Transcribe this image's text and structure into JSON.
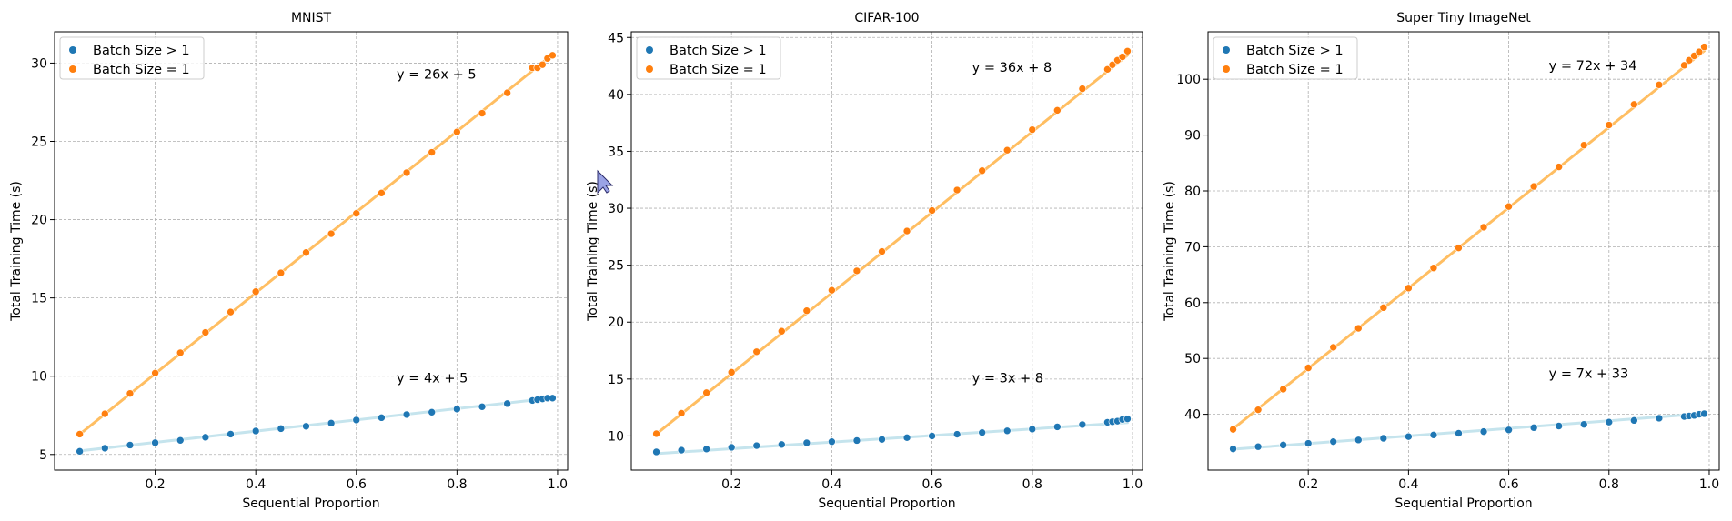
{
  "colors": {
    "batch_gt1_point": "#1f77b4",
    "batch_gt1_line": "#add8e6",
    "batch_eq1_point": "#ff7f0e",
    "batch_eq1_line": "#ffb347",
    "grid": "#b0b0b0",
    "cursor": "#9aa3e6"
  },
  "cursor_icon": "arrow-cursor-icon",
  "chart_data": [
    {
      "type": "scatter",
      "title": "MNIST",
      "xlabel": "Sequential Proportion",
      "ylabel": "Total Training Time (s)",
      "xlim": [
        0.0,
        1.02
      ],
      "ylim": [
        4.0,
        32.0
      ],
      "xticks": [
        0.2,
        0.4,
        0.6,
        0.8,
        1.0
      ],
      "xtick_labels": [
        "0.2",
        "0.4",
        "0.6",
        "0.8",
        "1.0"
      ],
      "yticks": [
        5,
        10,
        15,
        20,
        25,
        30
      ],
      "ytick_labels": [
        "5",
        "10",
        "15",
        "20",
        "25",
        "30"
      ],
      "grid": true,
      "legend": "top-left",
      "x": [
        0.05,
        0.1,
        0.15,
        0.2,
        0.25,
        0.3,
        0.35,
        0.4,
        0.45,
        0.5,
        0.55,
        0.6,
        0.65,
        0.7,
        0.75,
        0.8,
        0.85,
        0.9,
        0.95,
        0.96,
        0.97,
        0.98,
        0.99
      ],
      "series": [
        {
          "name": "Batch Size > 1",
          "values": [
            5.2,
            5.4,
            5.6,
            5.75,
            5.9,
            6.1,
            6.3,
            6.5,
            6.65,
            6.8,
            7.0,
            7.2,
            7.35,
            7.55,
            7.7,
            7.9,
            8.05,
            8.25,
            8.45,
            8.5,
            8.55,
            8.6,
            8.6
          ],
          "fit": {
            "slope": 3.6,
            "intercept": 5.05
          },
          "annotation": "y = 4x + 5",
          "annotation_pos": [
            0.68,
            9.6
          ]
        },
        {
          "name": "Batch Size = 1",
          "values": [
            6.3,
            7.6,
            8.9,
            10.2,
            11.5,
            12.8,
            14.1,
            15.4,
            16.6,
            17.9,
            19.1,
            20.4,
            21.7,
            23.0,
            24.3,
            25.6,
            26.8,
            28.1,
            29.7,
            29.7,
            29.9,
            30.3,
            30.5
          ],
          "fit": {
            "slope": 25.8,
            "intercept": 5.0
          },
          "annotation": "y = 26x + 5",
          "annotation_pos": [
            0.68,
            29.0
          ]
        }
      ]
    },
    {
      "type": "scatter",
      "title": "CIFAR-100",
      "xlabel": "Sequential Proportion",
      "ylabel": "Total Training Time (s)",
      "xlim": [
        0.0,
        1.02
      ],
      "ylim": [
        7.0,
        45.5
      ],
      "xticks": [
        0.2,
        0.4,
        0.6,
        0.8,
        1.0
      ],
      "xtick_labels": [
        "0.2",
        "0.4",
        "0.6",
        "0.8",
        "1.0"
      ],
      "yticks": [
        10,
        15,
        20,
        25,
        30,
        35,
        40,
        45
      ],
      "ytick_labels": [
        "10",
        "15",
        "20",
        "25",
        "30",
        "35",
        "40",
        "45"
      ],
      "grid": true,
      "legend": "top-left",
      "x": [
        0.05,
        0.1,
        0.15,
        0.2,
        0.25,
        0.3,
        0.35,
        0.4,
        0.45,
        0.5,
        0.55,
        0.6,
        0.65,
        0.7,
        0.75,
        0.8,
        0.85,
        0.9,
        0.95,
        0.96,
        0.97,
        0.98,
        0.99
      ],
      "series": [
        {
          "name": "Batch Size > 1",
          "values": [
            8.6,
            8.75,
            8.85,
            9.0,
            9.15,
            9.25,
            9.4,
            9.5,
            9.6,
            9.7,
            9.85,
            10.0,
            10.15,
            10.3,
            10.45,
            10.6,
            10.8,
            11.0,
            11.2,
            11.25,
            11.3,
            11.45,
            11.5
          ],
          "fit": {
            "slope": 2.9,
            "intercept": 8.3
          },
          "annotation": "y = 3x + 8",
          "annotation_pos": [
            0.68,
            14.7
          ]
        },
        {
          "name": "Batch Size = 1",
          "values": [
            10.2,
            12.0,
            13.8,
            15.6,
            17.4,
            19.2,
            21.0,
            22.8,
            24.5,
            26.2,
            28.0,
            29.8,
            31.6,
            33.3,
            35.1,
            36.9,
            38.6,
            40.5,
            42.2,
            42.6,
            43.0,
            43.3,
            43.8
          ],
          "fit": {
            "slope": 35.4,
            "intercept": 8.4
          },
          "annotation": "y = 36x + 8",
          "annotation_pos": [
            0.68,
            42.0
          ]
        }
      ]
    },
    {
      "type": "scatter",
      "title": "Super Tiny ImageNet",
      "xlabel": "Sequential Proportion",
      "ylabel": "Total Training Time (s)",
      "xlim": [
        0.0,
        1.02
      ],
      "ylim": [
        30.0,
        108.5
      ],
      "xticks": [
        0.2,
        0.4,
        0.6,
        0.8,
        1.0
      ],
      "xtick_labels": [
        "0.2",
        "0.4",
        "0.6",
        "0.8",
        "1.0"
      ],
      "yticks": [
        40,
        50,
        60,
        70,
        80,
        90,
        100
      ],
      "ytick_labels": [
        "40",
        "50",
        "60",
        "70",
        "80",
        "90",
        "100"
      ],
      "grid": true,
      "legend": "top-left",
      "x": [
        0.05,
        0.1,
        0.15,
        0.2,
        0.25,
        0.3,
        0.35,
        0.4,
        0.45,
        0.5,
        0.55,
        0.6,
        0.65,
        0.7,
        0.75,
        0.8,
        0.85,
        0.9,
        0.95,
        0.96,
        0.97,
        0.98,
        0.99
      ],
      "series": [
        {
          "name": "Batch Size > 1",
          "values": [
            33.8,
            34.2,
            34.5,
            34.8,
            35.1,
            35.4,
            35.7,
            36.0,
            36.3,
            36.6,
            36.9,
            37.2,
            37.6,
            37.9,
            38.2,
            38.6,
            38.9,
            39.3,
            39.6,
            39.7,
            39.8,
            40.0,
            40.1
          ],
          "fit": {
            "slope": 6.8,
            "intercept": 33.4
          },
          "annotation": "y = 7x + 33",
          "annotation_pos": [
            0.68,
            46.5
          ]
        },
        {
          "name": "Batch Size = 1",
          "values": [
            37.3,
            40.8,
            44.5,
            48.3,
            52.0,
            55.4,
            59.1,
            62.6,
            66.2,
            69.8,
            73.5,
            77.2,
            80.8,
            84.3,
            88.2,
            91.8,
            95.5,
            99.0,
            102.5,
            103.4,
            104.2,
            104.9,
            105.8
          ],
          "fit": {
            "slope": 72.0,
            "intercept": 33.8
          },
          "annotation": "y = 72x + 34",
          "annotation_pos": [
            0.68,
            101.7
          ]
        }
      ]
    }
  ]
}
